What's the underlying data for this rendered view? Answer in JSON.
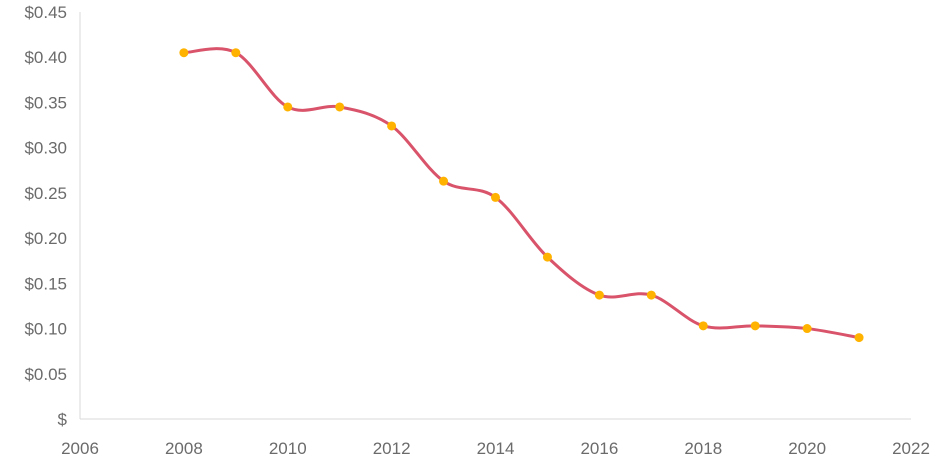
{
  "chart_data": {
    "type": "line",
    "title": "",
    "xlabel": "",
    "ylabel": "",
    "smooth": true,
    "grid": false,
    "xlim": [
      2006,
      2022
    ],
    "ylim": [
      0,
      0.45
    ],
    "x_ticks": [
      2006,
      2008,
      2010,
      2012,
      2014,
      2016,
      2018,
      2020,
      2022
    ],
    "x_tick_labels": [
      "2006",
      "2008",
      "2010",
      "2012",
      "2014",
      "2016",
      "2018",
      "2020",
      "2022"
    ],
    "y_ticks": [
      0,
      0.05,
      0.1,
      0.15,
      0.2,
      0.25,
      0.3,
      0.35,
      0.4,
      0.45
    ],
    "y_tick_labels": [
      "$",
      "$0.05",
      "$0.10",
      "$0.15",
      "$0.20",
      "$0.25",
      "$0.30",
      "$0.35",
      "$0.40",
      "$0.45"
    ],
    "series": [
      {
        "x": [
          2008,
          2009,
          2010,
          2011,
          2012,
          2013,
          2014,
          2015,
          2016,
          2017,
          2018,
          2019,
          2020,
          2021
        ],
        "values": [
          0.405,
          0.405,
          0.345,
          0.345,
          0.324,
          0.263,
          0.245,
          0.179,
          0.137,
          0.137,
          0.103,
          0.103,
          0.1,
          0.09
        ],
        "line_color": "#d9546a",
        "marker_color": "#ffb300"
      }
    ]
  }
}
